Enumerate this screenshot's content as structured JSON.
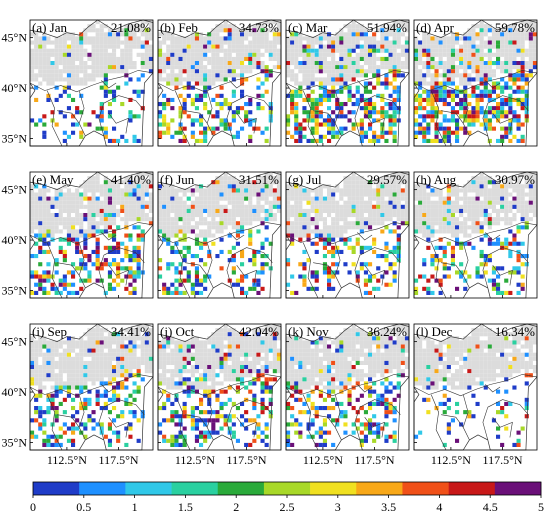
{
  "panels": [
    {
      "label": "(a) Jan",
      "percent": "21.08%",
      "density": 0.2108
    },
    {
      "label": "(b) Feb",
      "percent": "34.73%",
      "density": 0.3473
    },
    {
      "label": "(c) Mar",
      "percent": "51.94%",
      "density": 0.5194
    },
    {
      "label": "(d) Apr",
      "percent": "59.78%",
      "density": 0.5978
    },
    {
      "label": "(e) May",
      "percent": "41.40%",
      "density": 0.414
    },
    {
      "label": "(f) Jun",
      "percent": "31.51%",
      "density": 0.3151
    },
    {
      "label": "(g) Jul",
      "percent": "29.57%",
      "density": 0.2957
    },
    {
      "label": "(h) Aug",
      "percent": "30.97%",
      "density": 0.3097
    },
    {
      "label": "(i) Sep",
      "percent": "34.41%",
      "density": 0.3441
    },
    {
      "label": "(j) Oct",
      "percent": "42.04%",
      "density": 0.4204
    },
    {
      "label": "(k) Nov",
      "percent": "36.24%",
      "density": 0.3624
    },
    {
      "label": "(l) Dec",
      "percent": "16.34%",
      "density": 0.1634
    }
  ],
  "lat_ticks": [
    "45°N",
    "40°N",
    "35°N"
  ],
  "lon_ticks": [
    "112.5°N",
    "117.5°N"
  ],
  "colorbar": {
    "ticks": [
      "0",
      "0.5",
      "1",
      "1.5",
      "2",
      "2.5",
      "3",
      "3.5",
      "4",
      "4.5",
      "5"
    ],
    "colors": [
      "#1f3cc8",
      "#1e90ff",
      "#30c8e8",
      "#2ad0a0",
      "#2aaa3a",
      "#a8d828",
      "#f0e020",
      "#f8a818",
      "#f05018",
      "#c81818",
      "#6a1078"
    ]
  },
  "mask_color": "#dcdcdc"
}
